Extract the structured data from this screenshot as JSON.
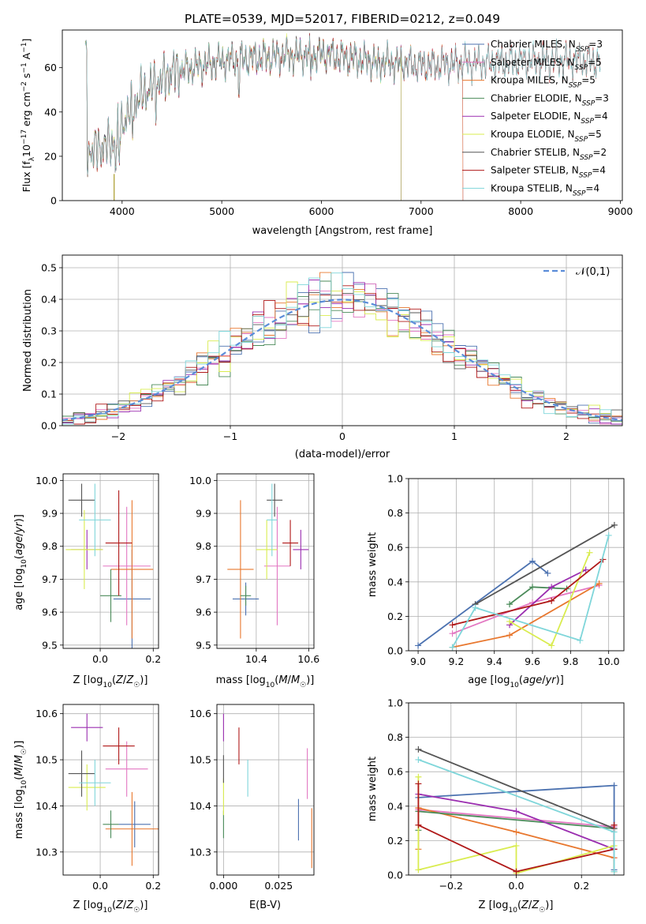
{
  "figure_title": "PLATE=0539, MJD=52017, FIBERID=0212, z=0.049",
  "colors": {
    "Chabrier MILES": "#4c72b0",
    "Salpeter MILES": "#e377c2",
    "Kroupa MILES": "#e8772e",
    "Chabrier ELODIE": "#4b8b5a",
    "Salpeter ELODIE": "#9b2fb0",
    "Kroupa ELODIE": "#d9ec4f",
    "Chabrier STELIB": "#555555",
    "Salpeter STELIB": "#b01818",
    "Kroupa STELIB": "#7fd6da",
    "normal": "#5b8dd9"
  },
  "chart_data": [
    {
      "id": "spectrum",
      "type": "line",
      "xlabel": "wavelength [Angstrom, rest frame]",
      "ylabel": "Flux [f_λ10^-17 erg cm^-2 s^-1 A^-1]",
      "xlim": [
        3400,
        9020
      ],
      "ylim": [
        0,
        77
      ],
      "xticks": [
        4000,
        5000,
        6000,
        7000,
        8000,
        9000
      ],
      "yticks": [
        0,
        20,
        40,
        60
      ],
      "legend_position": "upper-right",
      "continuum": {
        "x": [
          3650,
          3900,
          4000,
          4200,
          4500,
          5000,
          5500,
          6000,
          6500,
          7000,
          7500,
          8000,
          8700
        ],
        "y": [
          22,
          26,
          35,
          48,
          58,
          63,
          65,
          66,
          63,
          61,
          62,
          63,
          63
        ]
      },
      "series": [
        {
          "name": "Chabrier MILES, N_SSP=3",
          "x_range": [
            3630,
            7420
          ]
        },
        {
          "name": "Salpeter MILES, N_SSP=5",
          "x_range": [
            3630,
            7420
          ]
        },
        {
          "name": "Kroupa MILES, N_SSP=5",
          "x_range": [
            3630,
            7420
          ]
        },
        {
          "name": "Chabrier ELODIE, N_SSP=3",
          "x_range": [
            3630,
            6800
          ]
        },
        {
          "name": "Salpeter ELODIE, N_SSP=4",
          "x_range": [
            3630,
            6800
          ]
        },
        {
          "name": "Kroupa ELODIE, N_SSP=5",
          "x_range": [
            3630,
            6800
          ]
        },
        {
          "name": "Chabrier STELIB, N_SSP=2",
          "x_range": [
            3630,
            8800
          ]
        },
        {
          "name": "Salpeter STELIB, N_SSP=4",
          "x_range": [
            3630,
            8800
          ]
        },
        {
          "name": "Kroupa STELIB, N_SSP=4",
          "x_range": [
            3630,
            8800
          ]
        }
      ]
    },
    {
      "id": "residuals",
      "type": "line",
      "xlabel": "(data-model)/error",
      "ylabel": "Normed distribution",
      "xlim": [
        -2.5,
        2.5
      ],
      "ylim": [
        0,
        0.54
      ],
      "xticks": [
        -2,
        -1,
        0,
        1,
        2
      ],
      "yticks": [
        0.0,
        0.1,
        0.2,
        0.3,
        0.4,
        0.5
      ],
      "grid": true,
      "legend": "𝒩(0,1)",
      "legend_position": "upper-right",
      "bin_width": 0.1
    },
    {
      "id": "z-age",
      "type": "scatter",
      "xlabel": "Z [log10(Z/Z☉)]",
      "ylabel": "age  [log10(age/yr)]",
      "xlim": [
        -0.14,
        0.22
      ],
      "ylim": [
        9.49,
        10.02
      ],
      "xticks": [
        0.0,
        0.2
      ],
      "yticks": [
        9.5,
        9.6,
        9.7,
        9.8,
        9.9,
        10.0
      ],
      "grid": true,
      "points": [
        {
          "c": "Chabrier MILES",
          "x": 0.12,
          "y": 9.64,
          "xe": 0.07,
          "ye": 0.15
        },
        {
          "c": "Salpeter MILES",
          "x": 0.1,
          "y": 9.74,
          "xe": 0.09,
          "ye": 0.18
        },
        {
          "c": "Kroupa MILES",
          "x": 0.12,
          "y": 9.73,
          "xe": 0.08,
          "ye": 0.21
        },
        {
          "c": "Chabrier ELODIE",
          "x": 0.04,
          "y": 9.65,
          "xe": 0.04,
          "ye": 0.08
        },
        {
          "c": "Salpeter ELODIE",
          "x": -0.05,
          "y": 9.79,
          "xe": 0.06,
          "ye": 0.06
        },
        {
          "c": "Kroupa ELODIE",
          "x": -0.06,
          "y": 9.79,
          "xe": 0.07,
          "ye": 0.12
        },
        {
          "c": "Chabrier STELIB",
          "x": -0.07,
          "y": 9.94,
          "xe": 0.05,
          "ye": 0.05
        },
        {
          "c": "Salpeter STELIB",
          "x": 0.07,
          "y": 9.81,
          "xe": 0.05,
          "ye": 0.16
        },
        {
          "c": "Kroupa STELIB",
          "x": -0.02,
          "y": 9.88,
          "xe": 0.06,
          "ye": 0.11
        }
      ]
    },
    {
      "id": "mass-age",
      "type": "scatter",
      "xlabel": "mass [log10(M/M☉)]",
      "ylabel": "",
      "xlim": [
        10.25,
        10.62
      ],
      "ylim": [
        9.49,
        10.02
      ],
      "xticks": [
        10.4,
        10.6
      ],
      "yticks": [
        9.5,
        9.6,
        9.7,
        9.8,
        9.9,
        10.0
      ],
      "grid": true,
      "points": [
        {
          "c": "Chabrier MILES",
          "x": 10.36,
          "y": 9.64,
          "xe": 0.05,
          "ye": 0.05
        },
        {
          "c": "Salpeter MILES",
          "x": 10.48,
          "y": 9.74,
          "xe": 0.05,
          "ye": 0.18
        },
        {
          "c": "Kroupa MILES",
          "x": 10.34,
          "y": 9.73,
          "xe": 0.05,
          "ye": 0.21
        },
        {
          "c": "Chabrier ELODIE",
          "x": 10.36,
          "y": 9.65,
          "xe": 0.02,
          "ye": 0.03
        },
        {
          "c": "Salpeter ELODIE",
          "x": 10.57,
          "y": 9.79,
          "xe": 0.03,
          "ye": 0.06
        },
        {
          "c": "Kroupa ELODIE",
          "x": 10.44,
          "y": 9.79,
          "xe": 0.04,
          "ye": 0.09
        },
        {
          "c": "Chabrier STELIB",
          "x": 10.47,
          "y": 9.94,
          "xe": 0.03,
          "ye": 0.05
        },
        {
          "c": "Salpeter STELIB",
          "x": 10.53,
          "y": 9.81,
          "xe": 0.03,
          "ye": 0.07
        },
        {
          "c": "Kroupa STELIB",
          "x": 10.46,
          "y": 9.88,
          "xe": 0.02,
          "ye": 0.11
        }
      ]
    },
    {
      "id": "age-weight",
      "type": "line",
      "xlabel": "age  [log10(age/yr)]",
      "ylabel": "mass weight",
      "xlim": [
        8.95,
        10.08
      ],
      "ylim": [
        0,
        1.0
      ],
      "xticks": [
        9.0,
        9.2,
        9.4,
        9.6,
        9.8,
        10.0
      ],
      "yticks": [
        0.0,
        0.2,
        0.4,
        0.6,
        0.8,
        1.0
      ],
      "grid": true,
      "series": [
        {
          "c": "Chabrier MILES",
          "x": [
            9.0,
            9.6,
            9.68
          ],
          "y": [
            0.03,
            0.52,
            0.45
          ]
        },
        {
          "c": "Salpeter MILES",
          "x": [
            9.18,
            9.6,
            9.95
          ],
          "y": [
            0.1,
            0.28,
            0.38
          ]
        },
        {
          "c": "Kroupa MILES",
          "x": [
            9.18,
            9.48,
            9.95
          ],
          "y": [
            0.02,
            0.09,
            0.39
          ]
        },
        {
          "c": "Chabrier ELODIE",
          "x": [
            9.48,
            9.6,
            9.78
          ],
          "y": [
            0.27,
            0.37,
            0.36
          ]
        },
        {
          "c": "Salpeter ELODIE",
          "x": [
            9.48,
            9.7,
            9.88
          ],
          "y": [
            0.15,
            0.37,
            0.47
          ]
        },
        {
          "c": "Kroupa ELODIE",
          "x": [
            9.48,
            9.7,
            9.9
          ],
          "y": [
            0.17,
            0.03,
            0.57
          ]
        },
        {
          "c": "Chabrier STELIB",
          "x": [
            9.3,
            10.03
          ],
          "y": [
            0.27,
            0.73
          ]
        },
        {
          "c": "Salpeter STELIB",
          "x": [
            9.18,
            9.7,
            9.97
          ],
          "y": [
            0.15,
            0.29,
            0.53
          ]
        },
        {
          "c": "Kroupa STELIB",
          "x": [
            9.18,
            9.3,
            9.85,
            10.0
          ],
          "y": [
            0.02,
            0.25,
            0.06,
            0.67
          ]
        }
      ]
    },
    {
      "id": "z-mass",
      "type": "scatter",
      "xlabel": "Z [log10(Z/Z☉)]",
      "ylabel": "mass [log10(M/M☉)]",
      "xlim": [
        -0.14,
        0.22
      ],
      "ylim": [
        10.25,
        10.62
      ],
      "xticks": [
        0.0,
        0.2
      ],
      "yticks": [
        10.3,
        10.4,
        10.5,
        10.6
      ],
      "grid": true,
      "points": [
        {
          "c": "Chabrier MILES",
          "x": 0.13,
          "y": 10.36,
          "xe": 0.06,
          "ye": 0.05
        },
        {
          "c": "Salpeter MILES",
          "x": 0.1,
          "y": 10.48,
          "xe": 0.08,
          "ye": 0.06
        },
        {
          "c": "Kroupa MILES",
          "x": 0.12,
          "y": 10.35,
          "xe": 0.1,
          "ye": 0.08
        },
        {
          "c": "Chabrier ELODIE",
          "x": 0.04,
          "y": 10.36,
          "xe": 0.03,
          "ye": 0.03
        },
        {
          "c": "Salpeter ELODIE",
          "x": -0.05,
          "y": 10.57,
          "xe": 0.06,
          "ye": 0.03
        },
        {
          "c": "Kroupa ELODIE",
          "x": -0.05,
          "y": 10.44,
          "xe": 0.07,
          "ye": 0.05
        },
        {
          "c": "Chabrier STELIB",
          "x": -0.07,
          "y": 10.47,
          "xe": 0.05,
          "ye": 0.05
        },
        {
          "c": "Salpeter STELIB",
          "x": 0.07,
          "y": 10.53,
          "xe": 0.06,
          "ye": 0.04
        },
        {
          "c": "Kroupa STELIB",
          "x": -0.02,
          "y": 10.45,
          "xe": 0.06,
          "ye": 0.05
        }
      ]
    },
    {
      "id": "ebv-mass",
      "type": "scatter",
      "xlabel": "E(B-V)",
      "ylabel": "",
      "xlim": [
        -0.003,
        0.041
      ],
      "ylim": [
        10.25,
        10.62
      ],
      "xticks": [
        0.0,
        0.025
      ],
      "yticks": [
        10.3,
        10.4,
        10.5,
        10.6
      ],
      "grid": true,
      "points": [
        {
          "c": "Chabrier MILES",
          "x": 0.034,
          "y": 10.37,
          "xe": 0,
          "ye": 0.045
        },
        {
          "c": "Salpeter MILES",
          "x": 0.038,
          "y": 10.47,
          "xe": 0,
          "ye": 0.055
        },
        {
          "c": "Kroupa MILES",
          "x": 0.04,
          "y": 10.33,
          "xe": 0,
          "ye": 0.065
        },
        {
          "c": "Chabrier ELODIE",
          "x": 0.0,
          "y": 10.36,
          "xe": 0,
          "ye": 0.03
        },
        {
          "c": "Salpeter ELODIE",
          "x": 0.0,
          "y": 10.57,
          "xe": 0,
          "ye": 0.03
        },
        {
          "c": "Kroupa ELODIE",
          "x": 0.0,
          "y": 10.42,
          "xe": 0,
          "ye": 0.04
        },
        {
          "c": "Chabrier STELIB",
          "x": 0.0,
          "y": 10.48,
          "xe": 0,
          "ye": 0.03
        },
        {
          "c": "Salpeter STELIB",
          "x": 0.007,
          "y": 10.53,
          "xe": 0,
          "ye": 0.04
        },
        {
          "c": "Kroupa STELIB",
          "x": 0.011,
          "y": 10.46,
          "xe": 0,
          "ye": 0.04
        }
      ]
    },
    {
      "id": "z-weight",
      "type": "line",
      "xlabel": "Z [log10(Z/Z☉)]",
      "ylabel": "mass weight",
      "xlim": [
        -0.33,
        0.33
      ],
      "ylim": [
        0,
        1.0
      ],
      "xticks": [
        -0.2,
        0.0,
        0.2
      ],
      "yticks": [
        0.0,
        0.2,
        0.4,
        0.6,
        0.8,
        1.0
      ],
      "grid": true,
      "series": [
        {
          "c": "Chabrier MILES",
          "x": [
            -0.3,
            0.3,
            0.3
          ],
          "y": [
            0.45,
            0.52,
            0.03
          ]
        },
        {
          "c": "Salpeter MILES",
          "x": [
            -0.3,
            0.3,
            0.3
          ],
          "y": [
            0.38,
            0.28,
            0.1
          ]
        },
        {
          "c": "Kroupa MILES",
          "x": [
            -0.3,
            -0.3,
            0.0,
            0.3,
            0.3
          ],
          "y": [
            0.15,
            0.39,
            0.25,
            0.1,
            0.02
          ]
        },
        {
          "c": "Chabrier ELODIE",
          "x": [
            -0.3,
            -0.3,
            0.3
          ],
          "y": [
            0.26,
            0.37,
            0.27
          ]
        },
        {
          "c": "Salpeter ELODIE",
          "x": [
            -0.3,
            0.0,
            0.3
          ],
          "y": [
            0.47,
            0.37,
            0.15
          ]
        },
        {
          "c": "Kroupa ELODIE",
          "x": [
            -0.3,
            -0.3,
            0.0,
            0.0,
            0.3
          ],
          "y": [
            0.57,
            0.03,
            0.17,
            0.01,
            0.17
          ]
        },
        {
          "c": "Chabrier STELIB",
          "x": [
            -0.3,
            0.3
          ],
          "y": [
            0.73,
            0.27
          ]
        },
        {
          "c": "Salpeter STELIB",
          "x": [
            -0.3,
            -0.3,
            0.0,
            0.3,
            0.3
          ],
          "y": [
            0.53,
            0.29,
            0.02,
            0.15,
            0.29
          ]
        },
        {
          "c": "Kroupa STELIB",
          "x": [
            -0.3,
            0.3,
            0.3
          ],
          "y": [
            0.67,
            0.25,
            0.02
          ]
        }
      ]
    }
  ]
}
